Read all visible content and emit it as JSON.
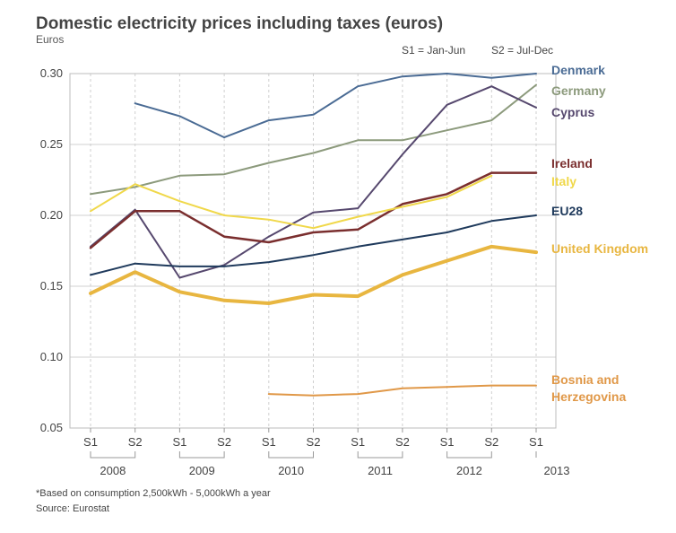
{
  "chart_data": {
    "type": "line",
    "title": "Domestic electricity prices including taxes (euros)",
    "ylabel": "Euros",
    "legend_note": [
      "S1 = Jan-Jun",
      "S2 = Jul-Dec"
    ],
    "x": [
      "2008 S1",
      "2008 S2",
      "2009 S1",
      "2009 S2",
      "2010 S1",
      "2010 S2",
      "2011 S1",
      "2011 S2",
      "2012 S1",
      "2012 S2",
      "2013 S1"
    ],
    "x_ticks": [
      "S1",
      "S2",
      "S1",
      "S2",
      "S1",
      "S2",
      "S1",
      "S2",
      "S1",
      "S2",
      "S1"
    ],
    "years": [
      "2008",
      "2009",
      "2010",
      "2011",
      "2012",
      "2013"
    ],
    "ylim": [
      0.05,
      0.3
    ],
    "y_ticks": [
      "0.05",
      "0.10",
      "0.15",
      "0.20",
      "0.25",
      "0.30"
    ],
    "grid": "vertical dashed",
    "series": [
      {
        "name": "Denmark",
        "label_lines": [
          "Denmark"
        ],
        "color": "#4a6b94",
        "width": 2,
        "values": [
          null,
          0.279,
          0.27,
          0.255,
          0.267,
          0.271,
          0.291,
          0.298,
          0.3,
          0.297,
          0.3
        ]
      },
      {
        "name": "Germany",
        "label_lines": [
          "Germany"
        ],
        "color": "#8c9a7c",
        "width": 2,
        "values": [
          0.215,
          0.22,
          0.228,
          0.229,
          0.237,
          0.244,
          0.253,
          0.253,
          0.26,
          0.267,
          0.292
        ]
      },
      {
        "name": "Cyprus",
        "label_lines": [
          "Cyprus"
        ],
        "color": "#56486e",
        "width": 2,
        "values": [
          0.178,
          0.204,
          0.156,
          0.165,
          0.185,
          0.202,
          0.205,
          0.243,
          0.278,
          0.291,
          0.276
        ]
      },
      {
        "name": "Ireland",
        "label_lines": [
          "Ireland"
        ],
        "color": "#7a2e2e",
        "width": 2.5,
        "values": [
          0.177,
          0.203,
          0.203,
          0.185,
          0.181,
          0.188,
          0.19,
          0.208,
          0.215,
          0.23,
          0.23
        ]
      },
      {
        "name": "Italy",
        "label_lines": [
          "Italy"
        ],
        "color": "#f0d84a",
        "width": 2,
        "values": [
          0.203,
          0.222,
          0.21,
          0.2,
          0.197,
          0.191,
          0.199,
          0.206,
          0.213,
          0.228,
          null
        ]
      },
      {
        "name": "EU28",
        "label_lines": [
          "EU28"
        ],
        "color": "#1f3a5c",
        "width": 2,
        "values": [
          0.158,
          0.166,
          0.164,
          0.164,
          0.167,
          0.172,
          0.178,
          0.183,
          0.188,
          0.196,
          0.2
        ]
      },
      {
        "name": "United Kingdom",
        "label_lines": [
          "United Kingdom"
        ],
        "color": "#e8b640",
        "width": 4,
        "values": [
          0.145,
          0.16,
          0.146,
          0.14,
          0.138,
          0.144,
          0.143,
          0.158,
          0.168,
          0.178,
          0.174
        ]
      },
      {
        "name": "Bosnia and Herzegovina",
        "label_lines": [
          "Bosnia and",
          "Herzegovina"
        ],
        "color": "#e09848",
        "width": 2,
        "values": [
          null,
          null,
          null,
          null,
          0.074,
          0.073,
          0.074,
          0.078,
          0.079,
          0.08,
          0.08
        ]
      }
    ]
  },
  "footnote": "*Based on consumption 2,500kWh - 5,000kWh a year",
  "source": "Source: Eurostat"
}
